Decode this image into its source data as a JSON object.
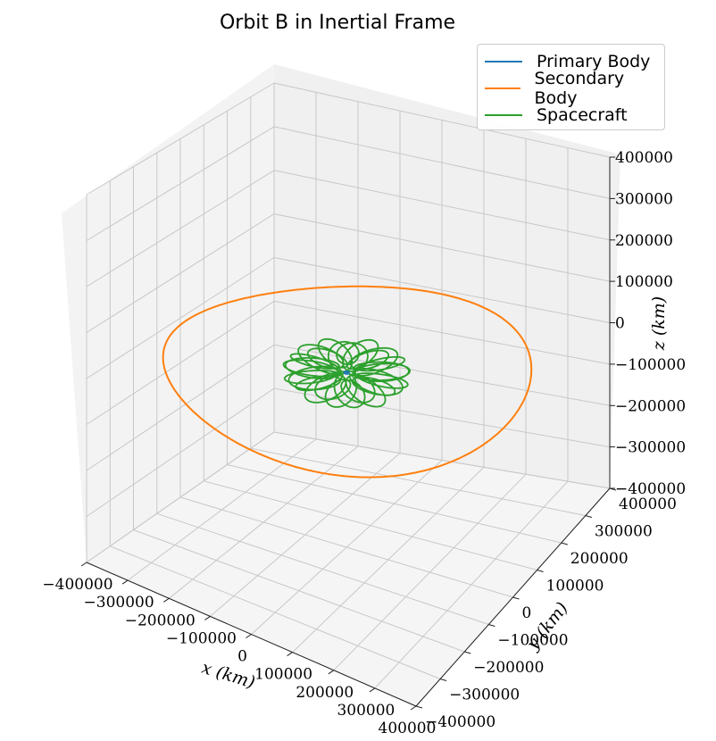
{
  "chart_data": {
    "type": "line",
    "title": "Orbit B in Inertial Frame",
    "xlabel": "x (km)",
    "ylabel": "y (km)",
    "zlabel": "z (km)",
    "xlim": [
      -400000,
      400000
    ],
    "ylim": [
      -400000,
      400000
    ],
    "zlim": [
      -400000,
      400000
    ],
    "x_ticks": [
      "−400000",
      "−300000",
      "−200000",
      "−100000",
      "0",
      "100000",
      "200000",
      "300000",
      "400000"
    ],
    "y_ticks": [
      "−400000",
      "−300000",
      "−200000",
      "−100000",
      "0",
      "100000",
      "200000",
      "300000",
      "400000"
    ],
    "z_ticks": [
      "−400000",
      "−300000",
      "−200000",
      "−100000",
      "0",
      "100000",
      "200000",
      "300000",
      "400000"
    ],
    "z_tick_labels_shown": [
      "400000",
      "300000",
      "200000",
      "100000",
      "0",
      "−100000",
      "−200000",
      "−300000",
      "−400000"
    ],
    "grid": true,
    "legend_position": "top-right",
    "series": [
      {
        "name": "Primary Body",
        "color": "#1f77b4",
        "radius_km": 4700,
        "shape": "circle"
      },
      {
        "name": "Secondary Body",
        "color": "#ff7f0e",
        "radius_km": 384400,
        "shape": "circle"
      },
      {
        "name": "Spacecraft",
        "color": "#2ca02c",
        "mean_radius_km": 75000,
        "loop_amplitude_km": 30000,
        "lobes": 26,
        "shape": "rosette"
      }
    ]
  },
  "legend": {
    "items": [
      "Primary Body",
      "Secondary Body",
      "Spacecraft"
    ]
  }
}
